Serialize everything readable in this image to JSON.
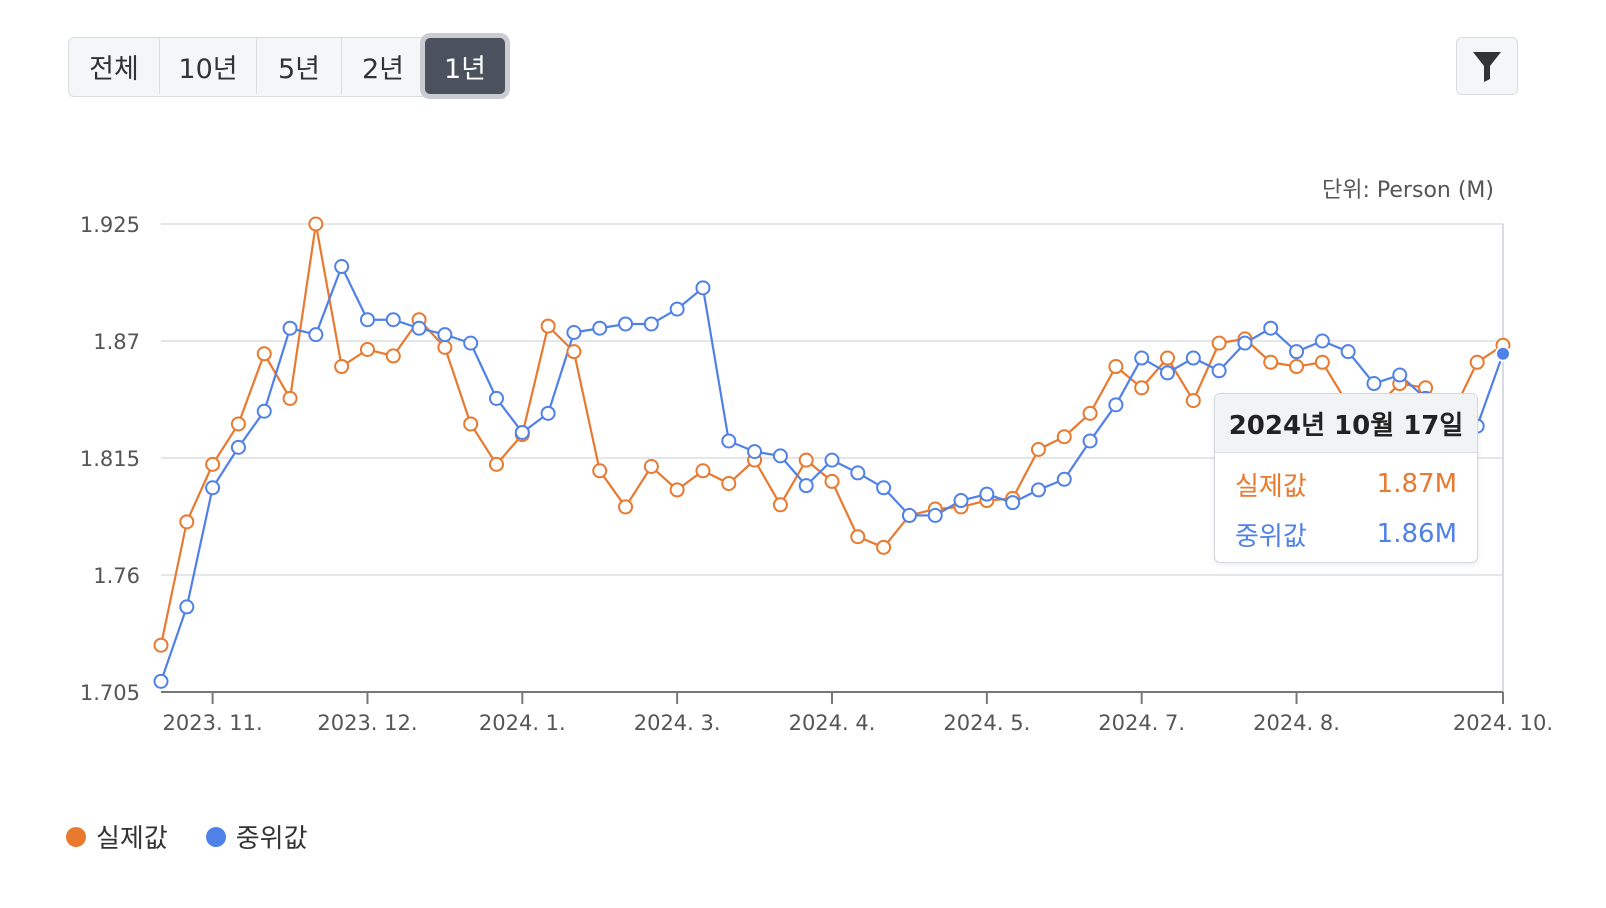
{
  "range_buttons": [
    {
      "label": "전체",
      "active": false
    },
    {
      "label": "10년",
      "active": false
    },
    {
      "label": "5년",
      "active": false
    },
    {
      "label": "2년",
      "active": false
    },
    {
      "label": "1년",
      "active": true
    }
  ],
  "filter_icon": "funnel-icon",
  "unit_label": "단위: Person (M)",
  "colors": {
    "actual": "#e8792f",
    "median": "#4f81e8",
    "grid": "#e4e6ea",
    "axis": "#666666"
  },
  "tooltip": {
    "date": "2024년 10월 17일",
    "rows": [
      {
        "name": "실제값",
        "value": "1.87M"
      },
      {
        "name": "중위값",
        "value": "1.86M"
      }
    ]
  },
  "legend": [
    {
      "name": "실제값",
      "color": "#e8792f"
    },
    {
      "name": "중위값",
      "color": "#4f81e8"
    }
  ],
  "chart_data": {
    "type": "line",
    "title": "",
    "xlabel": "",
    "ylabel": "",
    "ylim": [
      1.705,
      1.925
    ],
    "yticks": [
      "1.925",
      "1.87",
      "1.815",
      "1.76",
      "1.705"
    ],
    "xticks": [
      "2023. 11.",
      "2023. 12.",
      "2024. 1.",
      "2024. 3.",
      "2024. 4.",
      "2024. 5.",
      "2024. 7.",
      "2024. 8.",
      "2024. 10."
    ],
    "xtick_index": [
      2,
      8,
      14,
      20,
      26,
      32,
      38,
      44,
      52
    ],
    "grid": true,
    "series": [
      {
        "name": "실제값",
        "values": [
          1.727,
          1.785,
          1.812,
          1.831,
          1.864,
          1.843,
          1.925,
          1.858,
          1.866,
          1.863,
          1.88,
          1.867,
          1.831,
          1.812,
          1.826,
          1.877,
          1.865,
          1.809,
          1.792,
          1.811,
          1.8,
          1.809,
          1.803,
          1.814,
          1.793,
          1.814,
          1.804,
          1.778,
          1.773,
          1.788,
          1.791,
          1.792,
          1.795,
          1.796,
          1.819,
          1.825,
          1.836,
          1.858,
          1.848,
          1.862,
          1.842,
          1.869,
          1.871,
          1.86,
          1.858,
          1.86,
          1.84,
          1.838,
          1.85,
          1.848,
          1.835,
          1.86,
          1.868
        ]
      },
      {
        "name": "중위값",
        "values": [
          1.71,
          1.745,
          1.801,
          1.82,
          1.837,
          1.876,
          1.873,
          1.905,
          1.88,
          1.88,
          1.876,
          1.873,
          1.869,
          1.843,
          1.827,
          1.836,
          1.874,
          1.876,
          1.878,
          1.878,
          1.885,
          1.895,
          1.823,
          1.818,
          1.816,
          1.802,
          1.814,
          1.808,
          1.801,
          1.788,
          1.788,
          1.795,
          1.798,
          1.794,
          1.8,
          1.805,
          1.823,
          1.84,
          1.862,
          1.855,
          1.862,
          1.856,
          1.869,
          1.876,
          1.865,
          1.87,
          1.865,
          1.85,
          1.854,
          1.843,
          1.836,
          1.83,
          1.864
        ]
      }
    ]
  }
}
